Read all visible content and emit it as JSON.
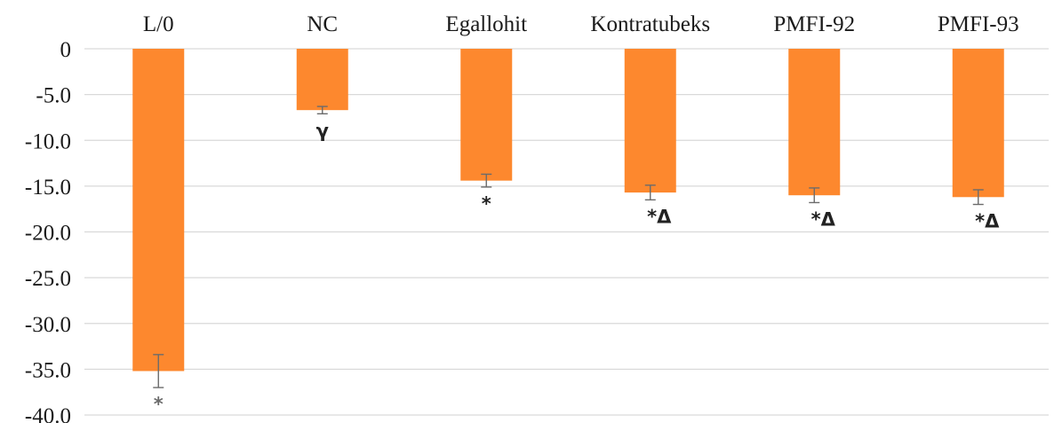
{
  "chart_data": {
    "type": "bar",
    "categories": [
      "L/0",
      "NC",
      "Egallohit",
      "Kontratubeks",
      "PMFI-92",
      "PMFI-93"
    ],
    "values": [
      -35.2,
      -6.7,
      -14.4,
      -15.7,
      -16.0,
      -16.2
    ],
    "error": [
      1.8,
      0.4,
      0.7,
      0.8,
      0.8,
      0.8
    ],
    "annotations": [
      "*",
      "γ",
      "*",
      "*Δ",
      "*Δ",
      "*Δ"
    ],
    "ylim": [
      -40,
      0
    ],
    "yticks": [
      0,
      -5,
      -10,
      -15,
      -20,
      -25,
      -30,
      -35,
      -40
    ],
    "ytick_labels": [
      "0",
      "-5.0",
      "-10.0",
      "-15.0",
      "-20.0",
      "-25.0",
      "-30.0",
      "-35.0",
      "-40.0"
    ],
    "title": "",
    "xlabel": "",
    "ylabel": "",
    "grid": true,
    "category_labels_position": "top",
    "colors": {
      "bar": "#fd882e",
      "grid": "#d9d9d9",
      "error": "#6b6b6b"
    }
  }
}
